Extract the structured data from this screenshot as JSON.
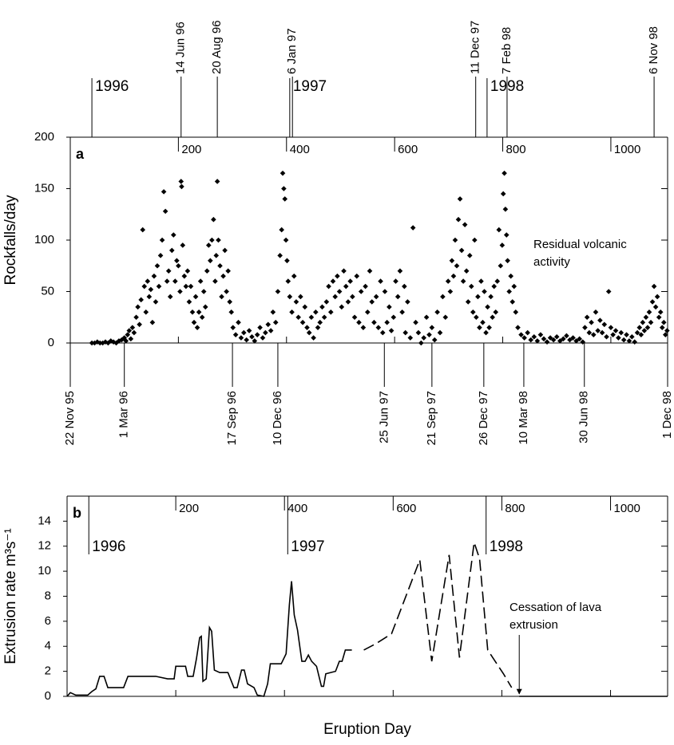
{
  "chart_data": [
    {
      "type": "scatter",
      "panel_label": "a",
      "ylabel": "Rockfalls/day",
      "color": "#000000",
      "xlim": [
        0,
        1105
      ],
      "xticks": [
        200,
        400,
        600,
        800,
        1000
      ],
      "ylim": [
        0,
        200
      ],
      "yticks": [
        0,
        50,
        100,
        150,
        200
      ],
      "annotation": [
        "Residual volcanic",
        "activity"
      ],
      "year_marks": [
        {
          "value": 40,
          "label": "1996"
        },
        {
          "value": 406,
          "label": "1997"
        },
        {
          "value": 771,
          "label": "1998"
        }
      ],
      "top_dates": [
        {
          "value": 205,
          "label": "14 Jun 96"
        },
        {
          "value": 272,
          "label": "20 Aug 96"
        },
        {
          "value": 411,
          "label": "6 Jan 97"
        },
        {
          "value": 750,
          "label": "11 Dec 97"
        },
        {
          "value": 808,
          "label": "7 Feb 98"
        },
        {
          "value": 1080,
          "label": "6 Nov 98"
        }
      ],
      "bottom_dates": [
        {
          "value": 0,
          "label": "22 Nov 95"
        },
        {
          "value": 100,
          "label": "1 Mar 96"
        },
        {
          "value": 300,
          "label": "17 Sep 96"
        },
        {
          "value": 384,
          "label": "10 Dec 96"
        },
        {
          "value": 581,
          "label": "25 Jun 97"
        },
        {
          "value": 669,
          "label": "21 Sep 97"
        },
        {
          "value": 765,
          "label": "26 Dec 97"
        },
        {
          "value": 839,
          "label": "10 Mar 98"
        },
        {
          "value": 951,
          "label": "30 Jun 98"
        },
        {
          "value": 1105,
          "label": "1 Dec 98"
        }
      ],
      "x": [
        40,
        45,
        50,
        55,
        60,
        65,
        70,
        75,
        80,
        85,
        90,
        95,
        100,
        103,
        106,
        109,
        112,
        115,
        118,
        122,
        125,
        128,
        131,
        134,
        137,
        140,
        143,
        146,
        149,
        152,
        155,
        158,
        161,
        164,
        167,
        170,
        173,
        176,
        179,
        182,
        185,
        188,
        191,
        194,
        197,
        200,
        203,
        205,
        206,
        208,
        211,
        214,
        217,
        220,
        223,
        226,
        229,
        232,
        235,
        238,
        241,
        244,
        247,
        250,
        253,
        256,
        259,
        262,
        265,
        268,
        270,
        272,
        274,
        277,
        280,
        283,
        286,
        289,
        292,
        295,
        298,
        301,
        306,
        311,
        316,
        321,
        326,
        331,
        336,
        341,
        346,
        351,
        356,
        361,
        366,
        371,
        375,
        380,
        384,
        388,
        391,
        393,
        395,
        397,
        399,
        401,
        403,
        406,
        410,
        414,
        418,
        422,
        426,
        430,
        434,
        438,
        442,
        446,
        450,
        454,
        458,
        462,
        466,
        470,
        474,
        478,
        482,
        486,
        490,
        494,
        498,
        502,
        506,
        510,
        514,
        518,
        522,
        526,
        530,
        534,
        538,
        542,
        546,
        550,
        554,
        558,
        562,
        566,
        570,
        574,
        578,
        582,
        586,
        590,
        594,
        598,
        602,
        606,
        610,
        614,
        618,
        620,
        624,
        629,
        634,
        639,
        644,
        649,
        654,
        659,
        664,
        669,
        674,
        679,
        684,
        689,
        694,
        699,
        703,
        706,
        709,
        712,
        715,
        718,
        721,
        724,
        727,
        730,
        733,
        736,
        739,
        742,
        745,
        748,
        751,
        754,
        757,
        760,
        763,
        766,
        769,
        772,
        775,
        778,
        781,
        784,
        787,
        790,
        793,
        796,
        799,
        801,
        803,
        805,
        807,
        809,
        812,
        815,
        818,
        821,
        824,
        828,
        834,
        840,
        846,
        852,
        858,
        864,
        870,
        876,
        882,
        888,
        894,
        900,
        906,
        912,
        918,
        924,
        930,
        936,
        942,
        948,
        952,
        956,
        960,
        964,
        968,
        972,
        976,
        980,
        984,
        988,
        992,
        996,
        1000,
        1004,
        1009,
        1014,
        1019,
        1024,
        1029,
        1034,
        1039,
        1044,
        1049,
        1053,
        1056,
        1059,
        1062,
        1065,
        1068,
        1071,
        1074,
        1077,
        1080,
        1083,
        1086,
        1089,
        1092,
        1095,
        1098,
        1101,
        1104
      ],
      "values": [
        0,
        0,
        1,
        0,
        0,
        1,
        0,
        2,
        1,
        0,
        2,
        3,
        5,
        2,
        8,
        12,
        4,
        15,
        10,
        25,
        35,
        18,
        42,
        110,
        55,
        30,
        60,
        45,
        52,
        20,
        65,
        40,
        75,
        55,
        85,
        100,
        147,
        128,
        60,
        70,
        45,
        90,
        105,
        60,
        80,
        75,
        50,
        157,
        152,
        95,
        65,
        55,
        70,
        40,
        55,
        30,
        20,
        45,
        15,
        30,
        60,
        25,
        50,
        35,
        70,
        95,
        80,
        100,
        120,
        60,
        85,
        157,
        100,
        75,
        45,
        65,
        90,
        50,
        70,
        40,
        30,
        15,
        8,
        20,
        5,
        10,
        3,
        12,
        6,
        2,
        8,
        15,
        5,
        10,
        18,
        12,
        30,
        20,
        50,
        85,
        110,
        165,
        150,
        140,
        100,
        80,
        60,
        45,
        30,
        65,
        40,
        25,
        45,
        20,
        35,
        15,
        10,
        25,
        5,
        30,
        15,
        20,
        35,
        25,
        40,
        55,
        30,
        60,
        45,
        65,
        50,
        35,
        70,
        55,
        40,
        60,
        45,
        25,
        65,
        20,
        50,
        15,
        55,
        30,
        70,
        40,
        20,
        45,
        15,
        60,
        10,
        50,
        20,
        35,
        12,
        25,
        60,
        45,
        70,
        30,
        55,
        10,
        40,
        5,
        112,
        20,
        10,
        0,
        5,
        25,
        8,
        15,
        3,
        30,
        10,
        45,
        25,
        60,
        50,
        80,
        65,
        100,
        75,
        120,
        140,
        90,
        60,
        115,
        70,
        40,
        85,
        55,
        30,
        100,
        25,
        45,
        15,
        60,
        20,
        50,
        10,
        35,
        15,
        45,
        25,
        55,
        30,
        60,
        110,
        75,
        95,
        145,
        165,
        130,
        105,
        80,
        50,
        65,
        40,
        55,
        30,
        15,
        8,
        5,
        10,
        3,
        6,
        2,
        8,
        4,
        1,
        5,
        3,
        6,
        2,
        4,
        7,
        3,
        5,
        2,
        4,
        1,
        15,
        25,
        10,
        20,
        8,
        30,
        12,
        22,
        10,
        18,
        6,
        50,
        15,
        8,
        12,
        5,
        10,
        3,
        8,
        2,
        6,
        1,
        10,
        15,
        8,
        20,
        12,
        25,
        15,
        30,
        20,
        40,
        55,
        35,
        45,
        25,
        30,
        15,
        20,
        8,
        12
      ]
    },
    {
      "type": "line",
      "panel_label": "b",
      "ylabel": "Extrusion rate m³s⁻¹",
      "xlabel": "Eruption Day",
      "xlim": [
        0,
        1105
      ],
      "xticks": [
        200,
        400,
        600,
        800,
        1000
      ],
      "ylim": [
        0,
        16
      ],
      "yticks": [
        0,
        2,
        4,
        6,
        8,
        10,
        12,
        14
      ],
      "annotation": [
        "Cessation of lava",
        "extrusion"
      ],
      "annotation_x": 832,
      "year_marks": [
        {
          "value": 40,
          "label": "1996"
        },
        {
          "value": 406,
          "label": "1997"
        },
        {
          "value": 771,
          "label": "1998"
        }
      ],
      "series": [
        {
          "color": "#000000",
          "dashed": false,
          "x": [
            0,
            6,
            16,
            38,
            46,
            53,
            60,
            68,
            75,
            104,
            112,
            163,
            185,
            197,
            200,
            218,
            222,
            232,
            238,
            244,
            247,
            250,
            256,
            262,
            266,
            271,
            281,
            296,
            307,
            313,
            321,
            326,
            332,
            344,
            350,
            362,
            369,
            374,
            394,
            403,
            409,
            413,
            418,
            424,
            432,
            438,
            444,
            450,
            459,
            468,
            472,
            476,
            494,
            501,
            506,
            512,
            524
          ],
          "values": [
            0,
            0.3,
            0.1,
            0.1,
            0.4,
            0.6,
            1.6,
            1.6,
            0.7,
            0.7,
            1.6,
            1.6,
            1.4,
            1.4,
            2.4,
            2.4,
            1.6,
            1.6,
            3.0,
            4.7,
            4.8,
            1.2,
            1.4,
            5.5,
            5.2,
            2.1,
            1.9,
            1.9,
            0.7,
            0.7,
            2.1,
            2.1,
            1.0,
            0.7,
            0.1,
            0,
            1.0,
            2.6,
            2.6,
            3.4,
            7.3,
            9.2,
            6.5,
            5.3,
            2.8,
            2.8,
            3.3,
            2.8,
            2.4,
            0.8,
            0.8,
            1.8,
            2.0,
            2.8,
            2.8,
            3.7,
            3.7
          ]
        },
        {
          "color": "#000000",
          "dashed": true,
          "x": [
            546,
            568,
            597,
            649,
            671,
            703,
            722,
            749,
            759,
            774,
            803,
            818
          ],
          "values": [
            3.7,
            4.2,
            5.0,
            10.9,
            2.8,
            11.3,
            3.1,
            12.3,
            11.0,
            3.7,
            1.8,
            0.7
          ]
        },
        {
          "color": "#000000",
          "dashed": false,
          "x": [
            832,
            1105
          ],
          "values": [
            0,
            0
          ]
        }
      ]
    }
  ]
}
